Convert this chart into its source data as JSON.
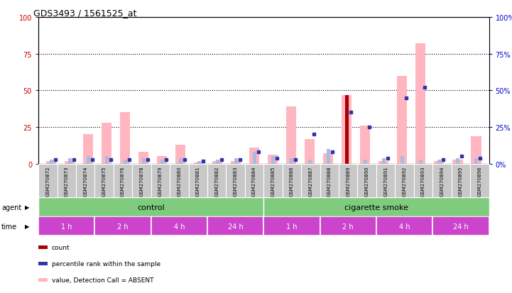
{
  "title": "GDS3493 / 1561525_at",
  "samples": [
    "GSM270872",
    "GSM270873",
    "GSM270874",
    "GSM270875",
    "GSM270876",
    "GSM270878",
    "GSM270879",
    "GSM270880",
    "GSM270881",
    "GSM270882",
    "GSM270883",
    "GSM270884",
    "GSM270885",
    "GSM270886",
    "GSM270887",
    "GSM270888",
    "GSM270889",
    "GSM270890",
    "GSM270891",
    "GSM270892",
    "GSM270893",
    "GSM270894",
    "GSM270895",
    "GSM270896"
  ],
  "value_absent": [
    2,
    2,
    20,
    28,
    35,
    8,
    5,
    13,
    1,
    2,
    2,
    11,
    6,
    39,
    17,
    7,
    47,
    26,
    2,
    60,
    82,
    2,
    3,
    19
  ],
  "rank_absent": [
    3,
    4,
    5,
    5,
    3,
    4,
    3,
    4,
    2,
    3,
    4,
    8,
    5,
    4,
    3,
    10,
    4,
    3,
    4,
    5,
    3,
    3,
    4,
    4
  ],
  "count": [
    0,
    0,
    0,
    0,
    0,
    0,
    0,
    0,
    0,
    0,
    0,
    0,
    0,
    0,
    0,
    0,
    47,
    0,
    0,
    0,
    0,
    0,
    0,
    0
  ],
  "percentile_rank": [
    3,
    3,
    3,
    3,
    3,
    3,
    3,
    3,
    2,
    3,
    3,
    8,
    4,
    3,
    20,
    8,
    35,
    25,
    4,
    45,
    52,
    3,
    5,
    4
  ],
  "agent_groups": [
    {
      "label": "control",
      "start": 0,
      "end": 12,
      "color": "#7FCC7F"
    },
    {
      "label": "cigarette smoke",
      "start": 12,
      "end": 24,
      "color": "#7FCC7F"
    }
  ],
  "time_groups": [
    {
      "label": "1 h",
      "start": 0,
      "end": 3
    },
    {
      "label": "2 h",
      "start": 3,
      "end": 6
    },
    {
      "label": "4 h",
      "start": 6,
      "end": 9
    },
    {
      "label": "24 h",
      "start": 9,
      "end": 12
    },
    {
      "label": "1 h",
      "start": 12,
      "end": 15
    },
    {
      "label": "2 h",
      "start": 15,
      "end": 18
    },
    {
      "label": "4 h",
      "start": 18,
      "end": 21
    },
    {
      "label": "24 h",
      "start": 21,
      "end": 24
    }
  ],
  "time_color": "#CC44CC",
  "ylim": [
    0,
    100
  ],
  "yticks": [
    0,
    25,
    50,
    75,
    100
  ],
  "value_absent_color": "#FFB6C1",
  "rank_absent_color": "#AABBDD",
  "count_color": "#AA0000",
  "percentile_color": "#3333AA",
  "bg_color": "#C8C8C8",
  "left_tick_color": "#CC0000",
  "right_tick_color": "#0000CC"
}
